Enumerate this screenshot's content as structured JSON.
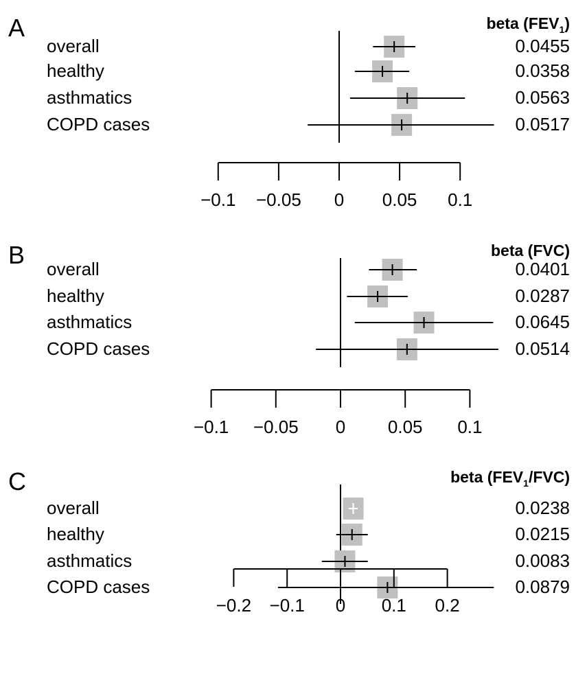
{
  "chart_data": [
    {
      "type": "forest",
      "panel_label": "A",
      "header": {
        "main": "beta (FEV",
        "sub": "1",
        "tail": ")"
      },
      "xlim": [
        -0.1,
        0.1
      ],
      "ticks": [
        -0.1,
        -0.05,
        0,
        0.05,
        0.1
      ],
      "tick_labels": [
        "−0.1",
        "−0.05",
        "0",
        "0.05",
        "0.1"
      ],
      "rows": [
        {
          "label": "overall",
          "beta": 0.0455,
          "beta_text": "0.0455",
          "ci": [
            0.028,
            0.063
          ]
        },
        {
          "label": "healthy",
          "beta": 0.0358,
          "beta_text": "0.0358",
          "ci": [
            0.013,
            0.058
          ]
        },
        {
          "label": "asthmatics",
          "beta": 0.0563,
          "beta_text": "0.0563",
          "ci": [
            0.009,
            0.104
          ]
        },
        {
          "label": "COPD cases",
          "beta": 0.0517,
          "beta_text": "0.0517",
          "ci": [
            -0.026,
            0.128
          ]
        }
      ]
    },
    {
      "type": "forest",
      "panel_label": "B",
      "header": {
        "main": "beta (FVC)",
        "sub": "",
        "tail": ""
      },
      "xlim": [
        -0.1,
        0.1
      ],
      "ticks": [
        -0.1,
        -0.05,
        0,
        0.05,
        0.1
      ],
      "tick_labels": [
        "−0.1",
        "−0.05",
        "0",
        "0.05",
        "0.1"
      ],
      "rows": [
        {
          "label": "overall",
          "beta": 0.0401,
          "beta_text": "0.0401",
          "ci": [
            0.022,
            0.059
          ]
        },
        {
          "label": "healthy",
          "beta": 0.0287,
          "beta_text": "0.0287",
          "ci": [
            0.005,
            0.052
          ]
        },
        {
          "label": "asthmatics",
          "beta": 0.0645,
          "beta_text": "0.0645",
          "ci": [
            0.011,
            0.118
          ]
        },
        {
          "label": "COPD cases",
          "beta": 0.0514,
          "beta_text": "0.0514",
          "ci": [
            -0.019,
            0.122
          ]
        }
      ]
    },
    {
      "type": "forest",
      "panel_label": "C",
      "header": {
        "main": "beta (FEV",
        "sub": "1",
        "tail": "/FVC)"
      },
      "xlim": [
        -0.2,
        0.2
      ],
      "ticks": [
        -0.2,
        -0.1,
        0,
        0.1,
        0.2
      ],
      "tick_labels": [
        "−0.2",
        "−0.1",
        "0",
        "0.1",
        "0.2"
      ],
      "rows": [
        {
          "label": "overall",
          "beta": 0.0238,
          "beta_text": "0.0238",
          "ci": [
            0.015,
            0.032
          ],
          "whisker_color": "#ffffff"
        },
        {
          "label": "healthy",
          "beta": 0.0215,
          "beta_text": "0.0215",
          "ci": [
            -0.008,
            0.051
          ]
        },
        {
          "label": "asthmatics",
          "beta": 0.0083,
          "beta_text": "0.0083",
          "ci": [
            -0.035,
            0.051
          ]
        },
        {
          "label": "COPD cases",
          "beta": 0.0879,
          "beta_text": "0.0879",
          "ci": [
            -0.117,
            0.287
          ]
        }
      ]
    }
  ],
  "colors": {
    "box": "#c0c0c0",
    "line": "#000000",
    "text": "#000000",
    "background": "#ffffff"
  }
}
